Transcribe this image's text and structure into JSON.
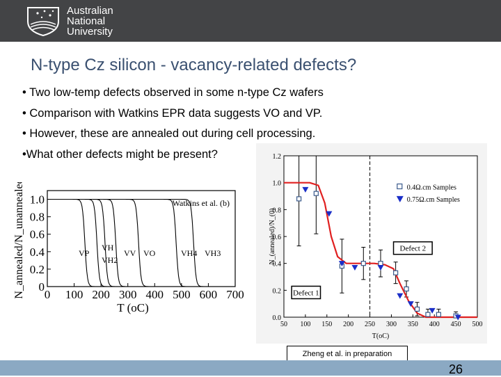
{
  "header": {
    "logo_lines": [
      "Australian",
      "National",
      "University"
    ]
  },
  "slide": {
    "title": "N-type Cz silicon - vacancy-related defects?",
    "bullets": [
      "• Two low-temp defects observed in some n-type Cz wafers",
      "• Comparison with Watkins EPR data suggests VO and VP.",
      "• However, these are annealed out during cell processing.",
      "•What other defects might be present?"
    ],
    "citation": "Zheng et al. in preparation",
    "page_number": "26"
  },
  "chart_data": [
    {
      "type": "line",
      "title": "Watkins et al. (b)",
      "xlabel": "T (oC)",
      "ylabel": "N_annealed/N_unannealed",
      "xlim": [
        0,
        700
      ],
      "ylim": [
        0,
        1.1
      ],
      "x_ticks": [
        "0",
        "100",
        "200",
        "300",
        "400",
        "500",
        "600",
        "700"
      ],
      "y_ticks": [
        "0",
        "0.2",
        "0.4",
        "0.6",
        "0.8",
        "1.0"
      ],
      "curve_labels": [
        "VP",
        "VH",
        "VH2",
        "VV",
        "VO",
        "VH4",
        "VH3"
      ],
      "series": [
        {
          "name": "VP",
          "midpoint": 140
        },
        {
          "name": "VH",
          "midpoint": 185
        },
        {
          "name": "VH2",
          "midpoint": 215
        },
        {
          "name": "VV",
          "midpoint": 255
        },
        {
          "name": "VO",
          "midpoint": 340
        },
        {
          "name": "VH4",
          "midpoint": 480
        },
        {
          "name": "VH3",
          "midpoint": 545
        }
      ]
    },
    {
      "type": "scatter",
      "xlabel": "T(oC)",
      "ylabel": "N_(annealed)/N_(0)",
      "xlim": [
        50,
        500
      ],
      "ylim": [
        0,
        1.2
      ],
      "x_ticks": [
        "50",
        "100",
        "150",
        "200",
        "250",
        "300",
        "350",
        "400",
        "450",
        "500"
      ],
      "y_ticks": [
        "0.0",
        "0.2",
        "0.4",
        "0.6",
        "0.8",
        "1.0",
        "1.2"
      ],
      "legend": [
        "0.4Ω.cm Samples",
        "0.75Ω.cm Samples"
      ],
      "annotations": [
        "Defect 2",
        "Defect 1"
      ],
      "series": [
        {
          "name": "0.4Ω.cm Samples",
          "marker": "open-square",
          "color": "#3a5a8c",
          "x": [
            85,
            125,
            185,
            235,
            275,
            310,
            335,
            360,
            385,
            410,
            450
          ],
          "y": [
            0.88,
            0.92,
            0.38,
            0.4,
            0.4,
            0.33,
            0.21,
            0.06,
            0.02,
            0.02,
            0.01
          ]
        },
        {
          "name": "0.75Ω.cm Samples",
          "marker": "filled-triangle",
          "color": "#1a2ec8",
          "x": [
            100,
            155,
            185,
            215,
            275,
            320,
            345,
            395,
            455
          ],
          "y": [
            0.95,
            0.77,
            0.4,
            0.37,
            0.37,
            0.16,
            0.1,
            0.05,
            0.0
          ]
        },
        {
          "name": "fit",
          "color": "#e02020",
          "x": [
            50,
            110,
            130,
            145,
            160,
            175,
            195,
            230,
            260,
            285,
            305,
            320,
            340,
            360,
            380,
            400,
            450,
            500
          ],
          "y": [
            1.0,
            1.0,
            0.98,
            0.85,
            0.6,
            0.45,
            0.4,
            0.4,
            0.4,
            0.39,
            0.36,
            0.25,
            0.12,
            0.03,
            0.0,
            0.0,
            0.0,
            0.0
          ]
        }
      ],
      "reference_line_x": 250
    }
  ]
}
